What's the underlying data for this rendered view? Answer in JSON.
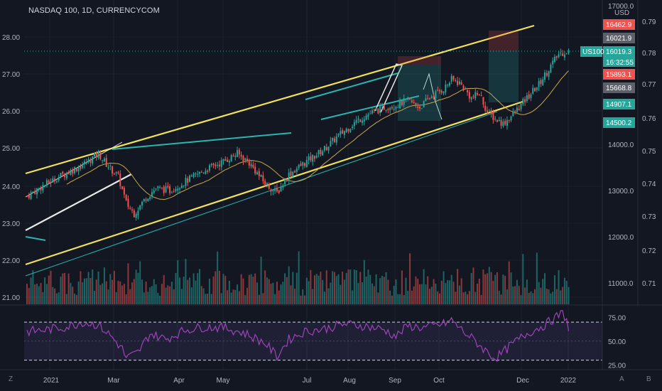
{
  "title": "NASDAQ 100, 1D, CURRENCYCOM",
  "currency": "USD",
  "symbol_badge": "US100",
  "countdown": "16:32:55",
  "controls": {
    "bottom_left": "Z",
    "auto": "A",
    "scale_right": "B"
  },
  "colors": {
    "background": "#131722",
    "up": "#26a69a",
    "down": "#ef5350",
    "channel": "#f2e15b",
    "trend": "#2bb5b0",
    "white_line": "#e8e8e8",
    "ma": "#c9a64a",
    "rsi": "#9c45b8",
    "price_line": "#26a69a"
  },
  "price_tags": [
    {
      "label": "16462.9",
      "value": 16462.9,
      "color": "#ef5350"
    },
    {
      "label": "16021.9",
      "value": 16021.9,
      "color": "#5d606b"
    },
    {
      "label": "16019.3",
      "value": 16019.3,
      "color": "#26a69a"
    },
    {
      "label": "15893.1",
      "value": 15893.1,
      "color": "#ef5350"
    },
    {
      "label": "15668.8",
      "value": 15668.8,
      "color": "#5d606b"
    },
    {
      "label": "14907.1",
      "value": 14907.1,
      "color": "#26a69a"
    },
    {
      "label": "14500.2",
      "value": 14500.2,
      "color": "#26a69a"
    }
  ],
  "chart_data": {
    "type": "candlestick",
    "x_ticks": [
      "2021",
      "Mar",
      "Apr",
      "May",
      "Jul",
      "Aug",
      "Sep",
      "Oct",
      "Dec",
      "2022"
    ],
    "price_axis": {
      "ticks": [
        "17000.0",
        "14000.0",
        "13000.0",
        "12000.0",
        "11000.0"
      ],
      "ylim": [
        10700,
        17000
      ]
    },
    "left_axis": {
      "ticks": [
        "28.00",
        "27.00",
        "26.00",
        "25.00",
        "24.00",
        "23.00",
        "22.00",
        "21.00"
      ],
      "ylim": [
        20.9,
        28.3
      ]
    },
    "ratio_axis": {
      "ticks": [
        "0.79",
        "0.78",
        "0.77",
        "0.76",
        "0.75",
        "0.74",
        "0.73",
        "0.72",
        "0.71"
      ],
      "ylim": [
        0.703,
        0.793
      ]
    },
    "close_anchors": [
      [
        0,
        12880
      ],
      [
        8,
        13100
      ],
      [
        16,
        13300
      ],
      [
        28,
        13550
      ],
      [
        36,
        13800
      ],
      [
        40,
        13570
      ],
      [
        46,
        13300
      ],
      [
        50,
        12730
      ],
      [
        54,
        12500
      ],
      [
        60,
        12850
      ],
      [
        65,
        13050
      ],
      [
        72,
        13000
      ],
      [
        78,
        13150
      ],
      [
        90,
        13450
      ],
      [
        100,
        13650
      ],
      [
        106,
        13800
      ],
      [
        112,
        13600
      ],
      [
        120,
        13150
      ],
      [
        126,
        12950
      ],
      [
        132,
        13350
      ],
      [
        140,
        13600
      ],
      [
        150,
        13900
      ],
      [
        156,
        14150
      ],
      [
        166,
        14500
      ],
      [
        172,
        14650
      ],
      [
        180,
        14800
      ],
      [
        186,
        14850
      ],
      [
        192,
        14950
      ],
      [
        198,
        14800
      ],
      [
        204,
        15050
      ],
      [
        210,
        15200
      ],
      [
        214,
        15400
      ],
      [
        218,
        15330
      ],
      [
        224,
        15000
      ],
      [
        228,
        15100
      ],
      [
        232,
        14700
      ],
      [
        236,
        14550
      ],
      [
        240,
        14450
      ],
      [
        244,
        14600
      ],
      [
        248,
        14800
      ],
      [
        252,
        15000
      ],
      [
        258,
        15300
      ],
      [
        264,
        15700
      ],
      [
        268,
        15950
      ],
      [
        271,
        16000
      ],
      [
        273,
        16020
      ]
    ],
    "volume_note": "daily volume histogram, up/down colored",
    "rsi": {
      "ticks": [
        "75.00",
        "50.00",
        "25.00"
      ],
      "ylim": [
        20,
        85
      ],
      "bands": [
        70,
        30
      ],
      "anchors": [
        [
          0,
          60
        ],
        [
          10,
          62
        ],
        [
          20,
          65
        ],
        [
          28,
          70
        ],
        [
          36,
          67
        ],
        [
          42,
          56
        ],
        [
          48,
          42
        ],
        [
          50,
          32
        ],
        [
          56,
          38
        ],
        [
          62,
          58
        ],
        [
          70,
          52
        ],
        [
          80,
          62
        ],
        [
          90,
          65
        ],
        [
          100,
          64
        ],
        [
          110,
          58
        ],
        [
          120,
          48
        ],
        [
          126,
          34
        ],
        [
          132,
          52
        ],
        [
          140,
          60
        ],
        [
          150,
          63
        ],
        [
          160,
          68
        ],
        [
          170,
          66
        ],
        [
          180,
          62
        ],
        [
          186,
          55
        ],
        [
          192,
          66
        ],
        [
          200,
          64
        ],
        [
          210,
          68
        ],
        [
          214,
          72
        ],
        [
          220,
          60
        ],
        [
          226,
          50
        ],
        [
          230,
          42
        ],
        [
          236,
          32
        ],
        [
          240,
          38
        ],
        [
          244,
          46
        ],
        [
          252,
          58
        ],
        [
          260,
          66
        ],
        [
          266,
          74
        ],
        [
          270,
          80
        ],
        [
          272,
          72
        ],
        [
          273,
          64
        ]
      ]
    }
  }
}
